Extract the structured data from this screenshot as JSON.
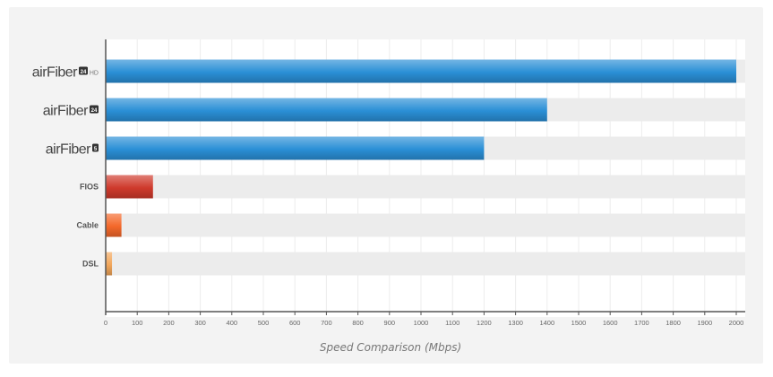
{
  "chart_data": {
    "type": "bar",
    "orientation": "horizontal",
    "categories": [
      "airFiber 24 HD",
      "airFiber 24",
      "airFiber 5",
      "FIOS",
      "Cable",
      "DSL"
    ],
    "values": [
      2000,
      1400,
      1200,
      150,
      50,
      20
    ],
    "colors": [
      "#2a8fd6",
      "#2a8fd6",
      "#2a8fd6",
      "#cf3a2c",
      "#f4682a",
      "#f2a65a"
    ],
    "xlabel": "Speed Comparison (Mbps)",
    "ylabel": "",
    "xlim": [
      0,
      2000
    ],
    "xticks": [
      "0",
      "100",
      "200",
      "300",
      "400",
      "500",
      "600",
      "700",
      "800",
      "900",
      "1000",
      "1100",
      "1200",
      "1300",
      "1400",
      "1500",
      "1600",
      "1700",
      "1800",
      "1900",
      "2000"
    ],
    "grid": true
  },
  "labels": {
    "brand": [
      {
        "main": "airFiber",
        "badge": "24",
        "suffix": "HD"
      },
      {
        "main": "airFiber",
        "badge": "24",
        "suffix": ""
      },
      {
        "main": "airFiber",
        "badge": "5",
        "suffix": ""
      }
    ],
    "plain": [
      "FIOS",
      "Cable",
      "DSL"
    ]
  }
}
